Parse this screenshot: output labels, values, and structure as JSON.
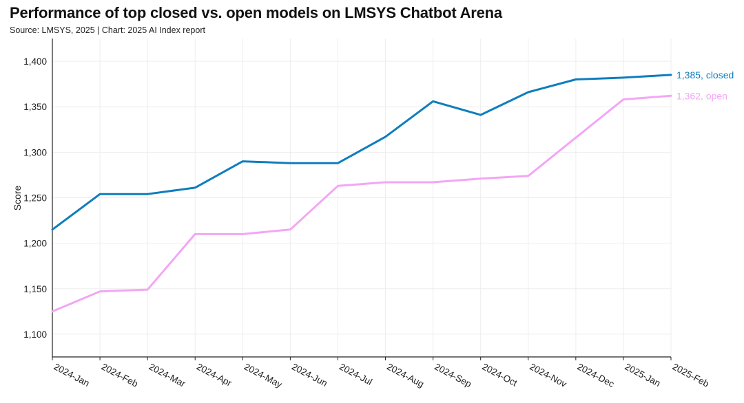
{
  "header": {
    "title": "Performance of top closed vs. open models on LMSYS Chatbot Arena",
    "subtitle": "Source: LMSYS, 2025 | Chart: 2025 AI Index report"
  },
  "colors": {
    "closed": "#0E7DBD",
    "open": "#F3A6F5",
    "grid": "#EDEDED",
    "axis": "#222222"
  },
  "chart_data": {
    "type": "line",
    "title": "Performance of top closed vs. open models on LMSYS Chatbot Arena",
    "xlabel": "",
    "ylabel": "Score",
    "ylim": [
      1075,
      1425
    ],
    "yticks": [
      1100,
      1150,
      1200,
      1250,
      1300,
      1350,
      1400
    ],
    "ytick_labels": [
      "1,100",
      "1,150",
      "1,200",
      "1,250",
      "1,300",
      "1,350",
      "1,400"
    ],
    "categories": [
      "2024-Jan",
      "2024-Feb",
      "2024-Mar",
      "2024-Apr",
      "2024-May",
      "2024-Jun",
      "2024-Jul",
      "2024-Aug",
      "2024-Sep",
      "2024-Oct",
      "2024-Nov",
      "2024-Dec",
      "2025-Jan",
      "2025-Feb"
    ],
    "series": [
      {
        "name": "closed",
        "values": [
          1215,
          1254,
          1254,
          1261,
          1290,
          1288,
          1288,
          1317,
          1356,
          1341,
          1366,
          1380,
          1382,
          1385
        ],
        "end_label": "1,385, closed"
      },
      {
        "name": "open",
        "values": [
          1125,
          1147,
          1149,
          1210,
          1210,
          1215,
          1263,
          1267,
          1267,
          1271,
          1274,
          1316,
          1358,
          1362
        ],
        "end_label": "1,362, open"
      }
    ],
    "grid": true
  }
}
